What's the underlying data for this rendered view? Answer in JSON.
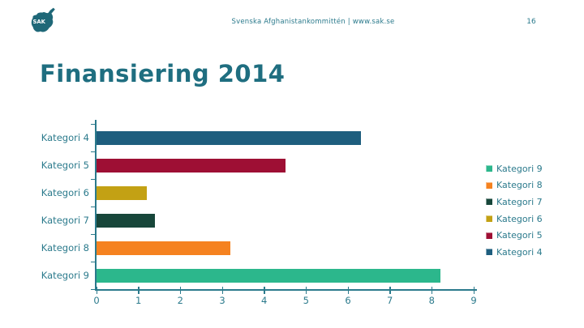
{
  "header": {
    "logo_text": "SAK",
    "center_text": "Svenska Afghanistankommittén | www.sak.se",
    "page_number": "16"
  },
  "title": "Finansiering 2014",
  "colors": {
    "teal_text": "#2b7a8c",
    "title_text": "#1f6e80",
    "axis": "#2b7a8c",
    "logo": "#1f6878"
  },
  "chart_data": {
    "type": "bar",
    "orientation": "horizontal",
    "title": "Finansiering 2014",
    "xlabel": "",
    "ylabel": "",
    "categories": [
      "Kategori 4",
      "Kategori 5",
      "Kategori 6",
      "Kategori 7",
      "Kategori 8",
      "Kategori 9"
    ],
    "values": [
      6.3,
      4.5,
      1.2,
      1.4,
      3.2,
      8.2
    ],
    "bar_colors": [
      "#1e5e7e",
      "#9e0f34",
      "#c3a114",
      "#17463a",
      "#f58220",
      "#2cb78c"
    ],
    "xlim": [
      0,
      9
    ],
    "xticks": [
      0,
      1,
      2,
      3,
      4,
      5,
      6,
      7,
      8,
      9
    ],
    "grid": false,
    "legend": {
      "position": "right",
      "entries": [
        "Kategori 9",
        "Kategori 8",
        "Kategori 7",
        "Kategori 6",
        "Kategori 5",
        "Kategori 4"
      ]
    }
  }
}
